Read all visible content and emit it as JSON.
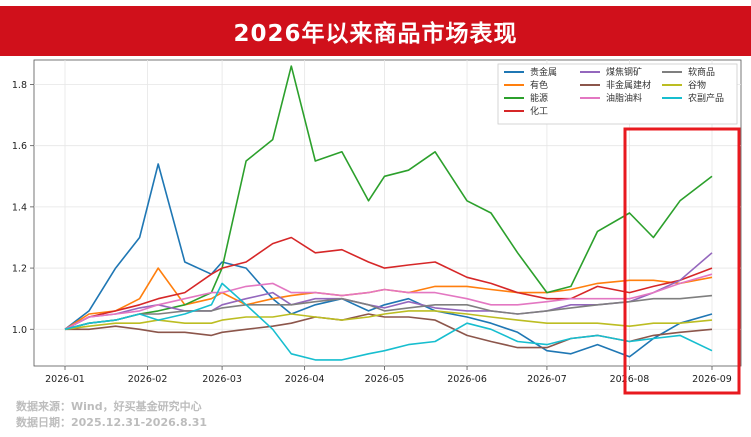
{
  "header": {
    "title": "2026年以来商品市场表现"
  },
  "source": {
    "line1": "数据来源：Wind，好买基金研究中心",
    "line2": "数据日期：2025.12.31-2026.8.31"
  },
  "colors": {
    "banner": "#d0101b",
    "highlight_box": "#e8191f"
  },
  "chart_data": {
    "type": "line",
    "title": "",
    "xlabel": "",
    "ylabel": "",
    "x_ticks": [
      "2026-01",
      "2026-02",
      "2026-03",
      "2026-04",
      "2026-05",
      "2026-06",
      "2026-07",
      "2026-08",
      "2026-09"
    ],
    "y_ticks": [
      1.0,
      1.2,
      1.4,
      1.6,
      1.8
    ],
    "ylim": [
      0.88,
      1.88
    ],
    "legend_position": "top-right",
    "grid": true,
    "x": [
      "2026-01-01",
      "2026-01-10",
      "2026-01-20",
      "2026-01-29",
      "2026-02-05",
      "2026-02-15",
      "2026-02-25",
      "2026-03-01",
      "2026-03-10",
      "2026-03-20",
      "2026-03-27",
      "2026-04-05",
      "2026-04-15",
      "2026-04-25",
      "2026-05-01",
      "2026-05-10",
      "2026-05-20",
      "2026-06-01",
      "2026-06-10",
      "2026-06-20",
      "2026-07-01",
      "2026-07-10",
      "2026-07-20",
      "2026-08-01",
      "2026-08-10",
      "2026-08-20",
      "2026-09-01"
    ],
    "series": [
      {
        "name": "贵金属",
        "color": "#1f77b4",
        "values": [
          1.0,
          1.06,
          1.2,
          1.3,
          1.54,
          1.22,
          1.18,
          1.22,
          1.2,
          1.1,
          1.05,
          1.08,
          1.1,
          1.06,
          1.08,
          1.1,
          1.06,
          1.04,
          1.02,
          0.99,
          0.93,
          0.92,
          0.95,
          0.91,
          0.97,
          1.02,
          1.05
        ]
      },
      {
        "name": "有色",
        "color": "#ff7f0e",
        "values": [
          1.0,
          1.05,
          1.06,
          1.1,
          1.2,
          1.08,
          1.1,
          1.12,
          1.08,
          1.1,
          1.11,
          1.12,
          1.11,
          1.12,
          1.13,
          1.12,
          1.14,
          1.14,
          1.13,
          1.12,
          1.12,
          1.13,
          1.15,
          1.16,
          1.16,
          1.15,
          1.17
        ]
      },
      {
        "name": "能源",
        "color": "#2ca02c",
        "values": [
          1.0,
          1.02,
          1.03,
          1.05,
          1.06,
          1.08,
          1.12,
          1.2,
          1.55,
          1.62,
          1.86,
          1.55,
          1.58,
          1.42,
          1.5,
          1.52,
          1.58,
          1.42,
          1.38,
          1.25,
          1.12,
          1.14,
          1.32,
          1.38,
          1.3,
          1.42,
          1.5
        ]
      },
      {
        "name": "化工",
        "color": "#d62728",
        "values": [
          1.0,
          1.04,
          1.06,
          1.08,
          1.1,
          1.12,
          1.18,
          1.2,
          1.22,
          1.28,
          1.3,
          1.25,
          1.26,
          1.22,
          1.2,
          1.21,
          1.22,
          1.17,
          1.15,
          1.12,
          1.1,
          1.1,
          1.14,
          1.12,
          1.14,
          1.16,
          1.2
        ]
      },
      {
        "name": "煤焦钢矿",
        "color": "#9467bd",
        "values": [
          1.0,
          1.04,
          1.05,
          1.07,
          1.08,
          1.06,
          1.06,
          1.08,
          1.1,
          1.12,
          1.08,
          1.1,
          1.1,
          1.08,
          1.07,
          1.09,
          1.07,
          1.06,
          1.06,
          1.05,
          1.06,
          1.08,
          1.08,
          1.09,
          1.12,
          1.16,
          1.25
        ]
      },
      {
        "name": "非金属建材",
        "color": "#8c564b",
        "values": [
          1.0,
          1.0,
          1.01,
          1.0,
          0.99,
          0.99,
          0.98,
          0.99,
          1.0,
          1.01,
          1.02,
          1.04,
          1.03,
          1.05,
          1.04,
          1.04,
          1.03,
          0.98,
          0.96,
          0.94,
          0.94,
          0.97,
          0.98,
          0.96,
          0.98,
          0.99,
          1.0
        ]
      },
      {
        "name": "油脂油料",
        "color": "#e377c2",
        "values": [
          1.0,
          1.04,
          1.05,
          1.06,
          1.08,
          1.1,
          1.12,
          1.12,
          1.14,
          1.15,
          1.12,
          1.12,
          1.11,
          1.12,
          1.13,
          1.12,
          1.12,
          1.1,
          1.08,
          1.08,
          1.09,
          1.1,
          1.1,
          1.1,
          1.12,
          1.15,
          1.18
        ]
      },
      {
        "name": "软商品",
        "color": "#7f7f7f",
        "values": [
          1.0,
          1.02,
          1.03,
          1.05,
          1.05,
          1.06,
          1.06,
          1.07,
          1.08,
          1.08,
          1.08,
          1.09,
          1.1,
          1.08,
          1.06,
          1.07,
          1.08,
          1.08,
          1.06,
          1.05,
          1.06,
          1.07,
          1.08,
          1.09,
          1.1,
          1.1,
          1.11
        ]
      },
      {
        "name": "谷物",
        "color": "#bcbd22",
        "values": [
          1.0,
          1.01,
          1.02,
          1.02,
          1.03,
          1.02,
          1.02,
          1.03,
          1.04,
          1.04,
          1.05,
          1.04,
          1.03,
          1.04,
          1.05,
          1.06,
          1.06,
          1.05,
          1.04,
          1.03,
          1.02,
          1.02,
          1.02,
          1.01,
          1.02,
          1.02,
          1.03
        ]
      },
      {
        "name": "农副产品",
        "color": "#17becf",
        "values": [
          1.0,
          1.02,
          1.03,
          1.05,
          1.03,
          1.05,
          1.08,
          1.15,
          1.08,
          1.0,
          0.92,
          0.9,
          0.9,
          0.92,
          0.93,
          0.95,
          0.96,
          1.02,
          1.0,
          0.96,
          0.95,
          0.97,
          0.98,
          0.96,
          0.97,
          0.98,
          0.93
        ]
      }
    ]
  }
}
